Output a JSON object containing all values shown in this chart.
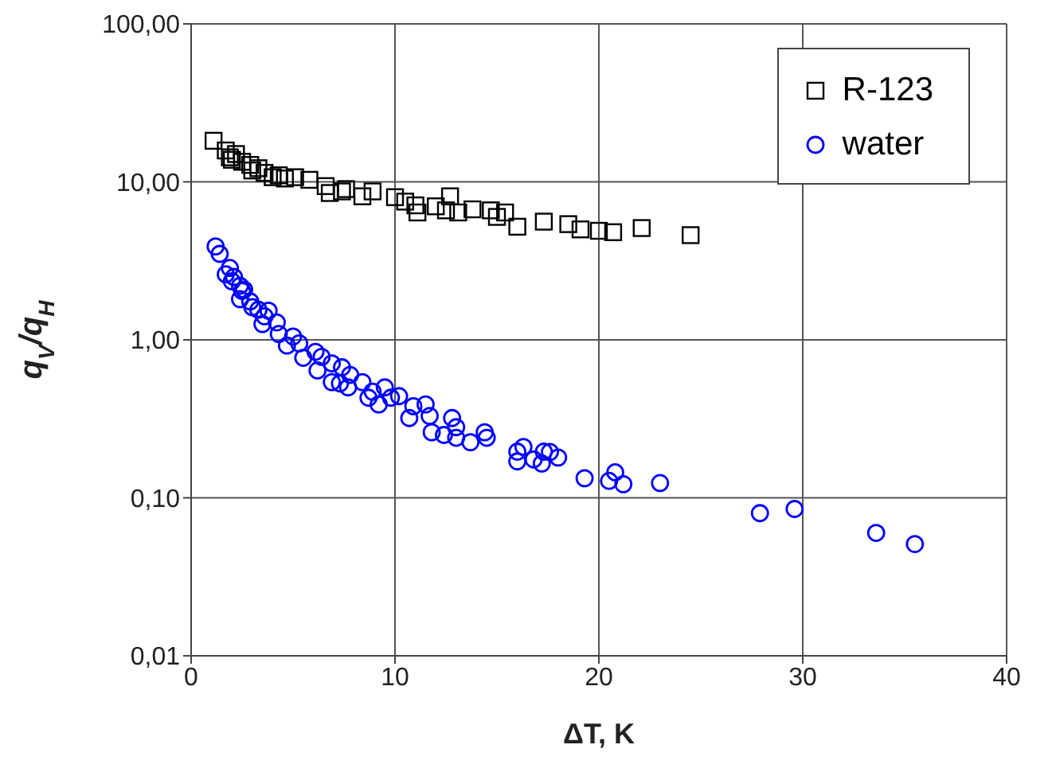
{
  "chart_data": {
    "type": "scatter",
    "xlabel": "ΔT, K",
    "ylabel": "q$_{V}$/q$_{H}$",
    "log": "y",
    "grid": true,
    "legend": "top right",
    "xlim": [
      0,
      40
    ],
    "xticks": [
      0,
      10,
      20,
      30,
      40
    ],
    "ylim": [
      0.01,
      100
    ],
    "yticks": [
      {
        "value": 0.01,
        "label": "0,01"
      },
      {
        "value": 0.1,
        "label": "0,10"
      },
      {
        "value": 1,
        "label": "1,00"
      },
      {
        "value": 10,
        "label": "10,00"
      },
      {
        "value": 100,
        "label": "100,00"
      }
    ],
    "series": [
      {
        "name": "R-123",
        "color": "#000000",
        "marker": "square",
        "x": [
          1.1,
          1.7,
          1.9,
          2.2,
          2.0,
          2.5,
          2.9,
          3.0,
          3.3,
          3.6,
          4.0,
          4.3,
          4.6,
          5.1,
          5.8,
          6.6,
          6.8,
          7.4,
          7.6,
          8.4,
          8.9,
          10.0,
          10.5,
          11.0,
          11.1,
          12.0,
          12.7,
          12.5,
          13.1,
          13.8,
          14.7,
          15.0,
          15.4,
          16.0,
          17.3,
          18.5,
          19.1,
          20.0,
          20.7,
          22.1,
          24.5
        ],
        "values": [
          18.2,
          15.8,
          14.3,
          15,
          13.8,
          13.4,
          12.8,
          11.8,
          12.2,
          11.4,
          10.7,
          11.0,
          10.5,
          10.7,
          10.3,
          9.4,
          8.5,
          8.7,
          9.0,
          8.1,
          8.7,
          8.0,
          7.5,
          7.1,
          6.4,
          7.0,
          8.1,
          6.6,
          6.4,
          6.7,
          6.6,
          6.0,
          6.4,
          5.2,
          5.6,
          5.4,
          5.0,
          4.9,
          4.8,
          5.1,
          4.6
        ]
      },
      {
        "name": "water",
        "color": "#0000ff",
        "marker": "circle",
        "x": [
          1.2,
          1.4,
          1.9,
          1.7,
          2.1,
          2.0,
          2.4,
          2.5,
          2.6,
          2.4,
          2.9,
          3.3,
          3.0,
          3.6,
          3.8,
          3.5,
          4.2,
          4.3,
          5.0,
          4.7,
          5.3,
          5.5,
          6.1,
          6.2,
          6.4,
          6.9,
          6.9,
          7.4,
          7.3,
          7.8,
          7.7,
          8.4,
          8.7,
          8.9,
          9.2,
          9.5,
          9.8,
          10.2,
          10.7,
          10.9,
          11.5,
          11.7,
          11.8,
          12.4,
          12.8,
          13.0,
          13.0,
          13.7,
          14.4,
          14.5,
          16.0,
          16.0,
          16.3,
          16.8,
          17.2,
          17.3,
          17.6,
          18.0,
          19.3,
          20.5,
          20.8,
          21.2,
          23.0,
          27.9,
          29.6,
          33.6,
          35.5
        ],
        "values": [
          3.9,
          3.5,
          2.85,
          2.6,
          2.5,
          2.35,
          2.2,
          2.04,
          2.08,
          1.81,
          1.75,
          1.55,
          1.61,
          1.41,
          1.53,
          1.26,
          1.29,
          1.09,
          1.05,
          0.92,
          0.95,
          0.77,
          0.84,
          0.64,
          0.78,
          0.71,
          0.54,
          0.67,
          0.53,
          0.6,
          0.5,
          0.54,
          0.43,
          0.47,
          0.39,
          0.5,
          0.43,
          0.44,
          0.32,
          0.38,
          0.39,
          0.33,
          0.26,
          0.25,
          0.32,
          0.28,
          0.24,
          0.225,
          0.26,
          0.24,
          0.196,
          0.17,
          0.21,
          0.175,
          0.165,
          0.196,
          0.195,
          0.18,
          0.133,
          0.128,
          0.145,
          0.122,
          0.124,
          0.08,
          0.085,
          0.06,
          0.051
        ]
      }
    ]
  }
}
